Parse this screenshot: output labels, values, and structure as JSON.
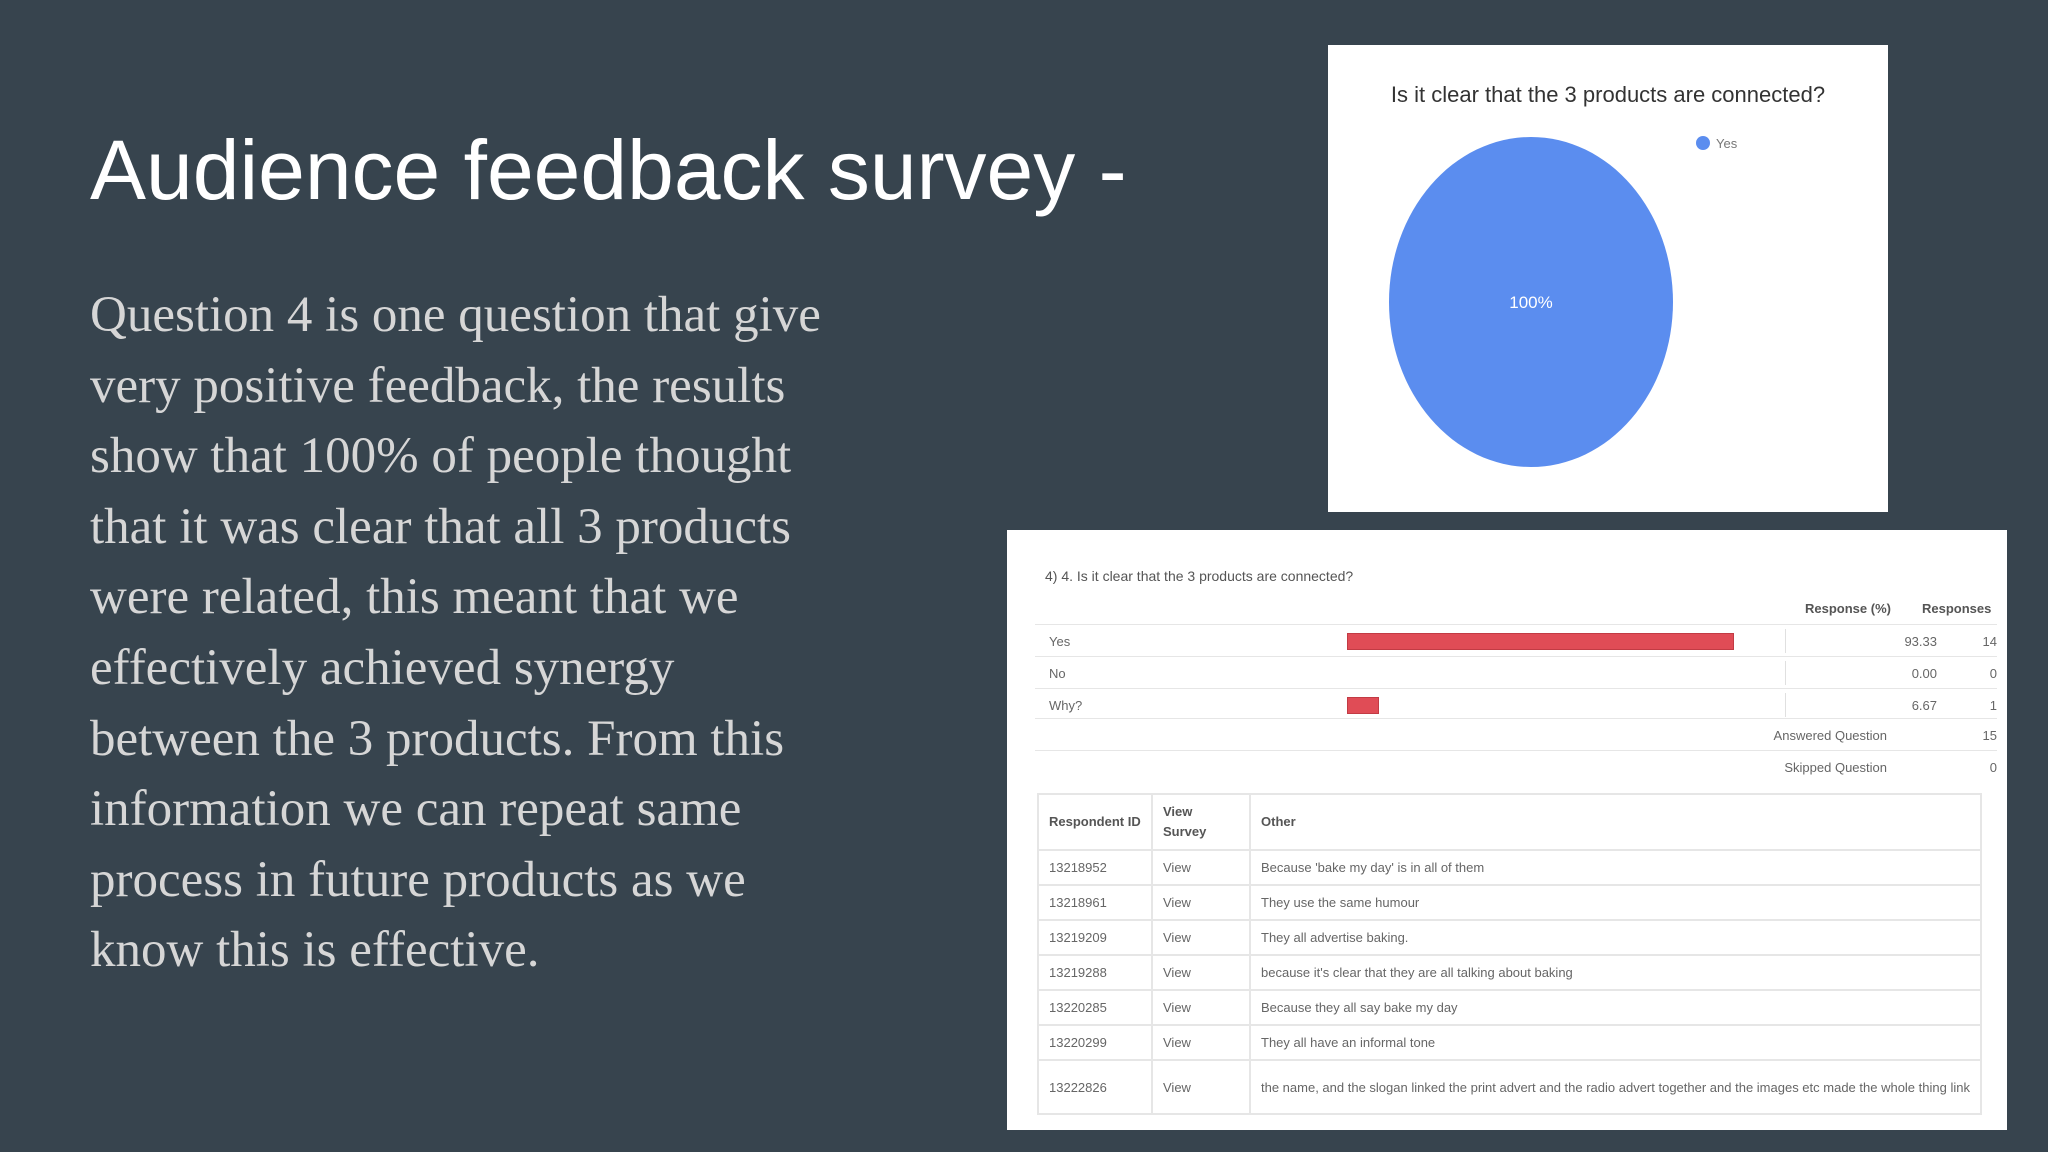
{
  "slide": {
    "title": "Audience feedback survey -",
    "body": "Question 4 is one question that give very positive feedback, the results show that 100% of people thought that it was clear that all 3 products were related, this meant that we effectively achieved synergy between the 3 products. From this information we can repeat same process in future products as we know this is effective."
  },
  "pie": {
    "title": "Is it clear that the 3 products are connected?",
    "legend": "Yes",
    "slice_label": "100%",
    "color": "#5b8def"
  },
  "survey_table": {
    "question": "4)  4.  Is it clear that the 3 products are connected?",
    "header_response_pct": "Response (%)",
    "header_responses": "Responses",
    "bar_color": "#e04c56",
    "rows": [
      {
        "label": "Yes",
        "pct": "93.33",
        "count": "14",
        "fraction": 0.9333
      },
      {
        "label": "No",
        "pct": "0.00",
        "count": "0",
        "fraction": 0.0
      },
      {
        "label": "Why?",
        "pct": "6.67",
        "count": "1",
        "fraction": 0.0667
      }
    ],
    "answered_label": "Answered Question",
    "answered_value": "15",
    "skipped_label": "Skipped Question",
    "skipped_value": "0"
  },
  "responses": {
    "headers": [
      "Respondent ID",
      "View Survey",
      "Other"
    ],
    "rows": [
      {
        "id": "13218952",
        "view": "View",
        "text": "Because 'bake my day' is in all of them"
      },
      {
        "id": "13218961",
        "view": "View",
        "text": "They use the same humour"
      },
      {
        "id": "13219209",
        "view": "View",
        "text": "They all advertise baking."
      },
      {
        "id": "13219288",
        "view": "View",
        "text": "because it's clear that they are all talking about baking"
      },
      {
        "id": "13220285",
        "view": "View",
        "text": "Because they all say bake my day"
      },
      {
        "id": "13220299",
        "view": "View",
        "text": "They all have an informal tone"
      },
      {
        "id": "13222826",
        "view": "View",
        "text": "the name, and the slogan linked the print advert and the radio advert together and the images etc made the whole thing link"
      }
    ]
  },
  "chart_data": {
    "type": "pie",
    "title": "Is it clear that the 3 products are connected?",
    "categories": [
      "Yes"
    ],
    "values": [
      100
    ],
    "legend": "top-right"
  }
}
